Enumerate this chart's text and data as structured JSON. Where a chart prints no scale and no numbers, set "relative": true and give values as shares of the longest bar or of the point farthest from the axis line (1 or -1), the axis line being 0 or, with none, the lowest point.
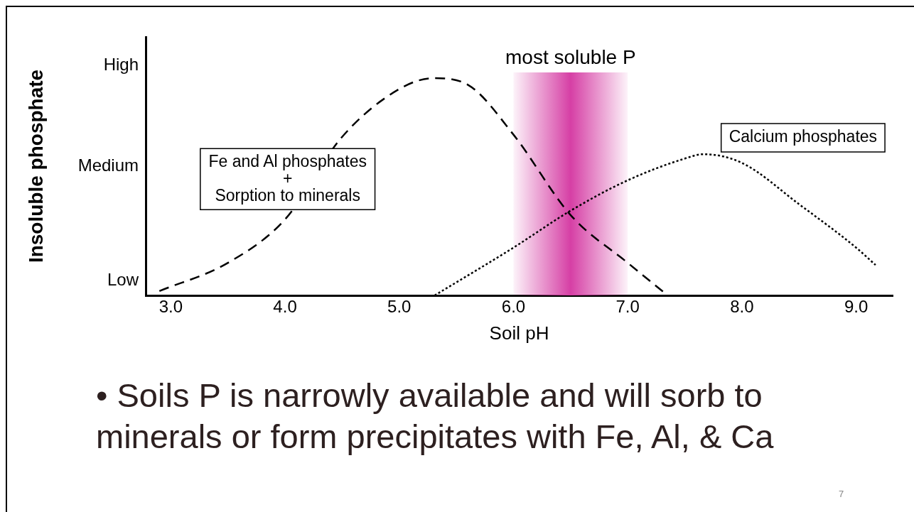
{
  "chart_data": {
    "type": "line",
    "relative": true,
    "xlabel": "Soil pH",
    "ylabel": "Insoluble phosphate",
    "xlim": [
      2.78,
      9.32
    ],
    "xticks": [
      {
        "value": 3,
        "label": "3.0"
      },
      {
        "value": 4,
        "label": "4.0"
      },
      {
        "value": 5,
        "label": "5.0"
      },
      {
        "value": 6,
        "label": "6.0"
      },
      {
        "value": 7,
        "label": "7.0"
      },
      {
        "value": 8,
        "label": "8.0"
      },
      {
        "value": 9,
        "label": "9.0"
      }
    ],
    "series": [
      {
        "name": "Fe and Al phosphates\n+\nSorption to minerals",
        "color": "#000000",
        "line_style": "dashed",
        "x": [
          2.9,
          3.5,
          4.0,
          4.5,
          5.0,
          5.3,
          5.6,
          6.0,
          6.5,
          7.0,
          7.35
        ],
        "values": [
          0.02,
          0.15,
          0.35,
          0.73,
          0.95,
          1,
          0.97,
          0.74,
          0.37,
          0.15,
          0
        ]
      },
      {
        "name": "Calcium phosphates",
        "color": "#000000",
        "line_style": "dotted",
        "x": [
          5.31,
          6.0,
          6.5,
          7.0,
          7.5,
          7.66,
          8.0,
          8.5,
          9.0,
          9.17
        ],
        "values": [
          0,
          0.22,
          0.39,
          0.53,
          0.63,
          0.65,
          0.61,
          0.42,
          0.22,
          0.14
        ]
      }
    ],
    "bands": [
      {
        "axis": "x",
        "from": 6.0,
        "to": 7.0,
        "label": "most soluble P",
        "color": "#d63fa5"
      }
    ],
    "marker": "none",
    "grid": false,
    "legend": false,
    "annotations": [
      "• Soils P is narrowly available and will sorb to minerals or form precipitates with Fe, Al, & Ca",
      "7",
      "Low",
      "Medium",
      "High"
    ]
  }
}
